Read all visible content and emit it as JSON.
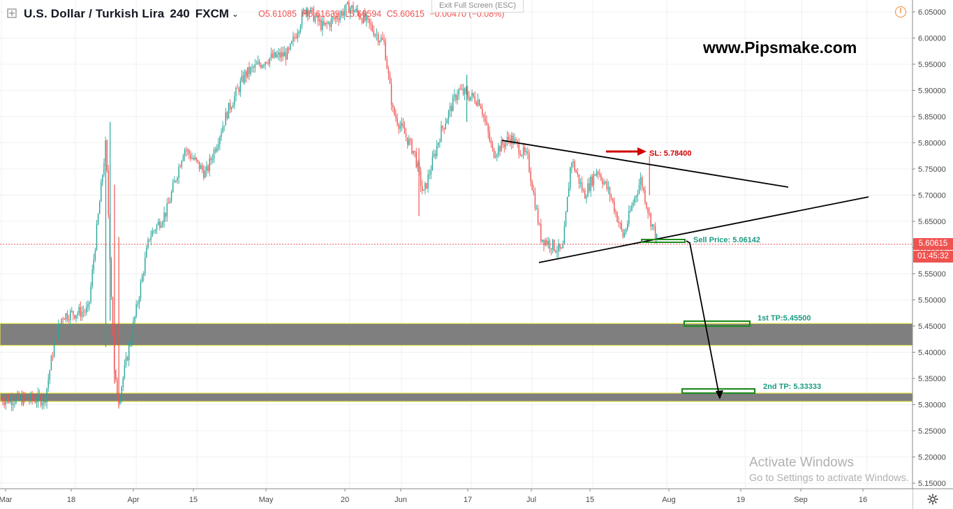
{
  "legend": {
    "symbol": "U.S. Dollar / Turkish Lira",
    "timeframe": "240",
    "source": "FXCM",
    "open": "O5.61085",
    "high": "H5.61639",
    "low": "L5.60594",
    "close": "C5.60615",
    "change": "−0.00470 (−0.08%)"
  },
  "exit_fullscreen": "Exit Full Screen (ESC)",
  "watermark": "www.Pipsmake.com",
  "activate": {
    "title": "Activate Windows",
    "subtitle": "Go to Settings to activate Windows."
  },
  "price_axis": {
    "current_price": "5.60615",
    "countdown": "01:45:32",
    "tag_color": "#ef5350"
  },
  "colors": {
    "up": "#26a69a",
    "down": "#ef5350",
    "zone_fill": "#7f7f7f",
    "zone_border": "#e6e64c",
    "annotation_green": "#1b9a82",
    "box_green": "#1e8c1e",
    "sl_red": "#d10000"
  },
  "chart_data": {
    "type": "candlestick",
    "title": "U.S. Dollar / Turkish Lira, 240, FXCM",
    "ylim": [
      5.13,
      6.07
    ],
    "y_ticks": [
      "6.05000",
      "6.00000",
      "5.95000",
      "5.90000",
      "5.85000",
      "5.80000",
      "5.75000",
      "5.70000",
      "5.65000",
      "5.60000",
      "5.55000",
      "5.50000",
      "5.45000",
      "5.40000",
      "5.35000",
      "5.30000",
      "5.25000",
      "5.20000",
      "5.15000"
    ],
    "x_ticks": [
      "Mar",
      "18",
      "Apr",
      "15",
      "May",
      "20",
      "Jun",
      "17",
      "Jul",
      "15",
      "Aug",
      "19",
      "Sep",
      "16"
    ],
    "approx_path": [
      {
        "t": "Mar 11",
        "v": 5.31
      },
      {
        "t": "Mar 13",
        "v": 5.41
      },
      {
        "t": "Mar 15",
        "v": 5.47
      },
      {
        "t": "Mar 21",
        "v": 5.48
      },
      {
        "t": "Mar 25",
        "v": 5.8
      },
      {
        "t": "Mar 27",
        "v": 5.35
      },
      {
        "t": "Mar 28",
        "v": 5.31
      },
      {
        "t": "Apr 1",
        "v": 5.48
      },
      {
        "t": "Apr 4",
        "v": 5.62
      },
      {
        "t": "Apr 8",
        "v": 5.67
      },
      {
        "t": "Apr 12",
        "v": 5.79
      },
      {
        "t": "Apr 17",
        "v": 5.74
      },
      {
        "t": "Apr 22",
        "v": 5.86
      },
      {
        "t": "Apr 26",
        "v": 5.93
      },
      {
        "t": "May 1",
        "v": 5.96
      },
      {
        "t": "May 6",
        "v": 5.97
      },
      {
        "t": "May 10",
        "v": 6.06
      },
      {
        "t": "May 14",
        "v": 6.02
      },
      {
        "t": "May 20",
        "v": 6.06
      },
      {
        "t": "May 23",
        "v": 6.04
      },
      {
        "t": "May 28",
        "v": 5.99
      },
      {
        "t": "May 30",
        "v": 5.86
      },
      {
        "t": "Jun 4",
        "v": 5.78
      },
      {
        "t": "Jun 6",
        "v": 5.7
      },
      {
        "t": "Jun 10",
        "v": 5.82
      },
      {
        "t": "Jun 14",
        "v": 5.9
      },
      {
        "t": "Jun 19",
        "v": 5.88
      },
      {
        "t": "Jun 22",
        "v": 5.78
      },
      {
        "t": "Jun 26",
        "v": 5.81
      },
      {
        "t": "Jun 30",
        "v": 5.77
      },
      {
        "t": "Jul 3",
        "v": 5.62
      },
      {
        "t": "Jul 8",
        "v": 5.59
      },
      {
        "t": "Jul 10",
        "v": 5.77
      },
      {
        "t": "Jul 13",
        "v": 5.7
      },
      {
        "t": "Jul 16",
        "v": 5.75
      },
      {
        "t": "Jul 19",
        "v": 5.7
      },
      {
        "t": "Jul 22",
        "v": 5.62
      },
      {
        "t": "Jul 24",
        "v": 5.68
      },
      {
        "t": "Jul 26",
        "v": 5.73
      },
      {
        "t": "Jul 28",
        "v": 5.66
      },
      {
        "t": "Jul 30",
        "v": 5.606
      }
    ],
    "zones": [
      {
        "top": 5.455,
        "bottom": 5.413
      },
      {
        "top": 5.322,
        "bottom": 5.306
      }
    ],
    "annotations": [
      {
        "label": "SL: 5.78400",
        "color": "#d10000"
      },
      {
        "label": "Sell Price: 5.06142",
        "color": "#1b9a82"
      },
      {
        "label": "1st TP:5.45500",
        "color": "#1b9a82"
      },
      {
        "label": "2nd TP: 5.33333",
        "color": "#1b9a82"
      }
    ],
    "current_price": 5.60615
  }
}
